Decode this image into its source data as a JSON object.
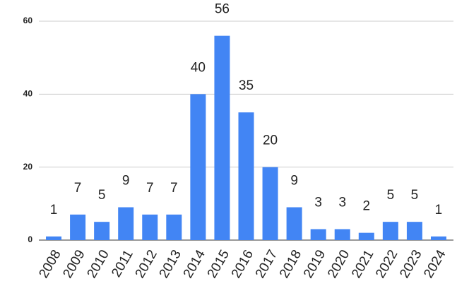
{
  "chart_data": {
    "type": "bar",
    "categories": [
      "2008",
      "2009",
      "2010",
      "2011",
      "2012",
      "2013",
      "2014",
      "2015",
      "2016",
      "2017",
      "2018",
      "2019",
      "2020",
      "2021",
      "2022",
      "2023",
      "2024"
    ],
    "values": [
      1,
      7,
      5,
      9,
      7,
      7,
      40,
      56,
      35,
      20,
      9,
      3,
      3,
      2,
      5,
      5,
      1
    ],
    "color": "#4285f4",
    "ylim": [
      0,
      60
    ],
    "yticks": [
      0,
      20,
      40,
      60
    ],
    "grid": true
  }
}
